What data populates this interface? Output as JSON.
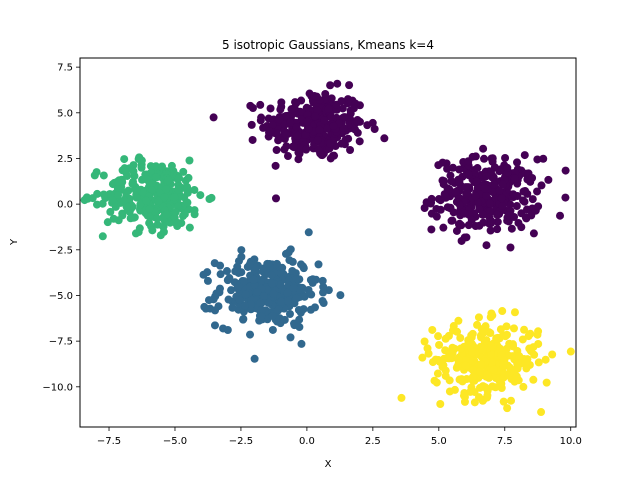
{
  "chart_data": {
    "type": "scatter",
    "title": "5 isotropic Gaussians, Kmeans k=4",
    "xlabel": "X",
    "ylabel": "Y",
    "xlim": [
      -8.6,
      10.2
    ],
    "ylim": [
      -12.2,
      8.0
    ],
    "xticks": [
      -7.5,
      -5.0,
      -2.5,
      0.0,
      2.5,
      5.0,
      7.5,
      10.0
    ],
    "xtick_labels": [
      "−7.5",
      "−5.0",
      "−2.5",
      "0.0",
      "2.5",
      "5.0",
      "7.5",
      "10.0"
    ],
    "yticks": [
      -10.0,
      -7.5,
      -5.0,
      -2.5,
      0.0,
      2.5,
      5.0,
      7.5
    ],
    "ytick_labels": [
      "−10.0",
      "−7.5",
      "−5.0",
      "−2.5",
      "0.0",
      "2.5",
      "5.0",
      "7.5"
    ],
    "grid": false,
    "clusters": [
      {
        "label": 0,
        "color": "#440154",
        "blobs": [
          {
            "center": [
              0.3,
              4.3
            ],
            "spread": 0.95,
            "n": 300
          },
          {
            "center": [
              6.8,
              0.5
            ],
            "spread": 1.0,
            "n": 300
          }
        ]
      },
      {
        "label": 1,
        "color": "#31688e",
        "blobs": [
          {
            "center": [
              -1.5,
              -4.8
            ],
            "spread": 0.95,
            "n": 300
          }
        ]
      },
      {
        "label": 2,
        "color": "#35b779",
        "blobs": [
          {
            "center": [
              -5.8,
              0.5
            ],
            "spread": 0.95,
            "n": 300
          }
        ]
      },
      {
        "label": 3,
        "color": "#fde725",
        "blobs": [
          {
            "center": [
              6.8,
              -8.5
            ],
            "spread": 1.0,
            "n": 300
          }
        ]
      }
    ]
  }
}
